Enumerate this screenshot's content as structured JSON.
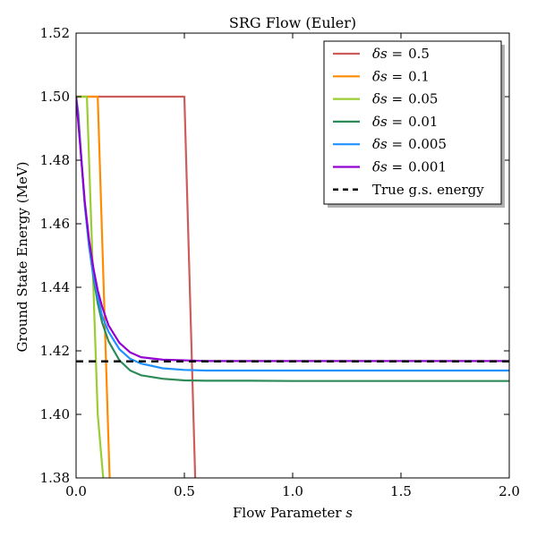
{
  "chart_data": {
    "type": "line",
    "title": "SRG Flow (Euler)",
    "xlabel": "Flow Parameter",
    "xlabel_symbol": "s",
    "ylabel": "Ground State Energy (MeV)",
    "xlim": [
      0.0,
      2.0
    ],
    "ylim": [
      1.38,
      1.52
    ],
    "x_ticks": [
      "0.0",
      "0.5",
      "1.0",
      "1.5",
      "2.0"
    ],
    "y_ticks": [
      "1.38",
      "1.40",
      "1.42",
      "1.44",
      "1.46",
      "1.48",
      "1.50",
      "1.52"
    ],
    "grid": false,
    "legend_position": "top-right",
    "legend_prefix": "δs =",
    "series": [
      {
        "name": "δs = 0.5",
        "step_label": "0.5",
        "color": "#cd5c5c",
        "x": [
          0.0,
          0.5,
          0.55
        ],
        "y": [
          1.5,
          1.5,
          1.38
        ]
      },
      {
        "name": "δs = 0.1",
        "step_label": "0.1",
        "color": "#ff8c00",
        "x": [
          0.0,
          0.1,
          0.155
        ],
        "y": [
          1.5,
          1.5,
          1.38
        ]
      },
      {
        "name": "δs = 0.05",
        "step_label": "0.05",
        "color": "#9acd32",
        "x": [
          0.0,
          0.05,
          0.1,
          0.125
        ],
        "y": [
          1.5,
          1.5,
          1.4,
          1.38
        ]
      },
      {
        "name": "δs = 0.01",
        "step_label": "0.01",
        "color": "#2e8b57",
        "x": [
          0.0,
          0.01,
          0.02,
          0.04,
          0.06,
          0.08,
          0.1,
          0.12,
          0.15,
          0.2,
          0.25,
          0.3,
          0.4,
          0.5,
          0.6,
          0.8,
          1.0,
          1.5,
          2.0
        ],
        "y": [
          1.5,
          1.495,
          1.485,
          1.466,
          1.453,
          1.443,
          1.435,
          1.429,
          1.423,
          1.417,
          1.4138,
          1.4123,
          1.4112,
          1.4107,
          1.4106,
          1.4106,
          1.4105,
          1.4105,
          1.4105
        ]
      },
      {
        "name": "δs = 0.005",
        "step_label": "0.005",
        "color": "#1e90ff",
        "x": [
          0.0,
          0.01,
          0.02,
          0.04,
          0.06,
          0.08,
          0.1,
          0.12,
          0.15,
          0.2,
          0.25,
          0.3,
          0.4,
          0.5,
          0.6,
          0.8,
          1.0,
          1.5,
          2.0
        ],
        "y": [
          1.5,
          1.493,
          1.484,
          1.466,
          1.453,
          1.444,
          1.437,
          1.431,
          1.426,
          1.4205,
          1.4175,
          1.416,
          1.4145,
          1.414,
          1.4138,
          1.4138,
          1.4138,
          1.4138,
          1.4138
        ]
      },
      {
        "name": "δs = 0.001",
        "step_label": "0.001",
        "color": "#9400d3",
        "x": [
          0.0,
          0.01,
          0.02,
          0.04,
          0.06,
          0.08,
          0.1,
          0.12,
          0.15,
          0.2,
          0.25,
          0.3,
          0.4,
          0.5,
          0.6,
          0.8,
          1.0,
          1.5,
          2.0
        ],
        "y": [
          1.5,
          1.492,
          1.484,
          1.467,
          1.455,
          1.446,
          1.439,
          1.434,
          1.428,
          1.4225,
          1.4195,
          1.418,
          1.4172,
          1.417,
          1.4168,
          1.4168,
          1.4168,
          1.4168,
          1.4168
        ]
      },
      {
        "name": "True g.s. energy",
        "color": "#000000",
        "dashed": true,
        "x": [
          0.0,
          2.0
        ],
        "y": [
          1.4167,
          1.4167
        ]
      }
    ]
  }
}
